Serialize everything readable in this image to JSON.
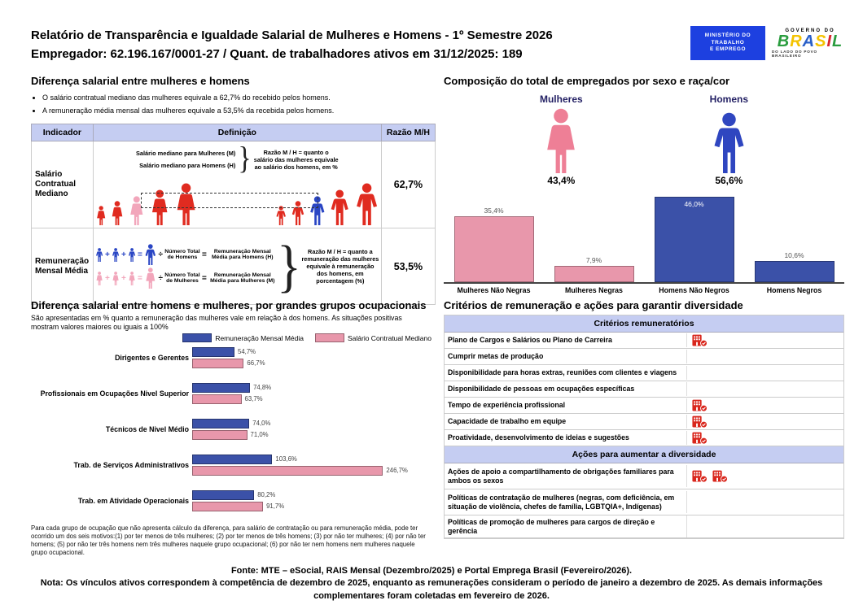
{
  "header": {
    "title": "Relatório de Transparência e Igualdade Salarial de Mulheres e Homens - 1º Semestre 2026",
    "subtitle": "Empregador: 62.196.167/0001-27 / Quant. de trabalhadores ativos em 31/12/2025: 189",
    "logos": {
      "ministry_lines": [
        "MINISTÉRIO DO",
        "TRABALHO",
        "E EMPREGO"
      ],
      "gov_top": "GOVERNO DO",
      "gov_name": "BRASIL",
      "gov_letter_colors": [
        "#2a9d3f",
        "#f4c300",
        "#2a60c8",
        "#f4c300",
        "#d7262c",
        "#2a9d3f"
      ],
      "gov_tagline": "DO LADO DO POVO BRASILEIRO"
    }
  },
  "salary_gap": {
    "title": "Diferença salarial entre mulheres e homens",
    "bullets": [
      "O salário contratual mediano das mulheres equivale a 62,7% do recebido pelos homens.",
      "A remuneração média mensal das mulheres equivale a 53,5% da recebida pelos homens."
    ],
    "table_headers": [
      "Indicador",
      "Definição",
      "Razão M/H"
    ],
    "row1": {
      "indicator": "Salário Contratual Mediano",
      "def_line1": "Salário mediano para Mulheres (M)",
      "def_line2": "Salário mediano para Homens (H)",
      "note": "Razão M / H = quanto o salário das mulheres equivale ao salário dos homens, em %",
      "ratio": "62,7%",
      "women_colors": [
        "red",
        "red",
        "pink",
        "red",
        "red"
      ],
      "men_colors": [
        "red",
        "red",
        "blue",
        "red",
        "red"
      ]
    },
    "row2": {
      "indicator": "Remuneração Mensal Média",
      "men_divisor": "Número Total de Homens",
      "men_result": "Remuneração Mensal Média para Homens (H)",
      "women_divisor": "Número Total de Mulheres",
      "women_result": "Remuneração Mensal Média para Mulheres (M)",
      "note": "Razão M / H = quanto a remuneração das mulheres equivale à remuneração dos homens, em porcentagem (%)",
      "ratio": "53,5%"
    }
  },
  "composition": {
    "title": "Composição do total de empregados por sexo e raça/cor",
    "women_label": "Mulheres",
    "women_pct": "43,4%",
    "men_label": "Homens",
    "men_pct": "56,6%"
  },
  "occupational": {
    "title": "Diferença salarial entre homens e mulheres, por grandes grupos ocupacionais",
    "subtitle": "São apresentadas em % quanto a remuneração das mulheres vale em relação à dos homens. As situações positivas mostram valores maiores ou iguais a 100%",
    "footnote": "Para cada grupo de ocupação que não apresenta cálculo da diferença, para salário de contratação ou para remuneração média, pode ter ocorrido um dos seis motivos:(1) por ter menos de três mulheres; (2) por ter menos de três homens; (3) por não ter mulheres; (4) por não ter homens; (5) por não ter três homens nem três mulheres naquele grupo ocupacional; (6) por não ter nem homens nem mulheres naquele grupo ocupacional."
  },
  "criteria": {
    "title": "Critérios de remuneração e ações para garantir diversidade",
    "section1": "Critérios remuneratórios",
    "rows1": [
      {
        "label": "Plano de Cargos e Salários ou Plano de Carreira",
        "checks": 1
      },
      {
        "label": "Cumprir metas de produção",
        "checks": 0
      },
      {
        "label": "Disponibilidade para horas extras, reuniões com clientes e viagens",
        "checks": 0
      },
      {
        "label": "Disponibilidade de pessoas em ocupações específicas",
        "checks": 0
      },
      {
        "label": "Tempo de experiência profissional",
        "checks": 1
      },
      {
        "label": "Capacidade de trabalho em equipe",
        "checks": 1
      },
      {
        "label": "Proatividade, desenvolvimento de ideias e sugestões",
        "checks": 1
      }
    ],
    "section2": "Ações para aumentar a diversidade",
    "rows2": [
      {
        "label": "Ações de apoio a compartilhamento de obrigações familiares para ambos os sexos",
        "checks": 2
      },
      {
        "label": "Políticas de contratação de mulheres (negras, com deficiência, em situação de violência, chefes de família, LGBTQIA+, Indígenas)",
        "checks": 0
      },
      {
        "label": "Políticas de promoção de mulheres para cargos de direção e gerência",
        "checks": 0
      }
    ]
  },
  "footer": {
    "source": "Fonte: MTE – eSocial, RAIS Mensal (Dezembro/2025) e Portal Emprega Brasil (Fevereiro/2026).",
    "note": "Nota: Os vínculos ativos correspondem à competência de dezembro de 2025, enquanto as remunerações consideram o período de janeiro a dezembro de 2025. As demais informações complementares foram coletadas em fevereiro de 2026."
  },
  "colors": {
    "header_fill": "#c5cdf2",
    "bar_blue": "#3b51a8",
    "bar_pink": "#e897ab",
    "icon_red": "#e02b20",
    "icon_pink": "#f2a6bb",
    "icon_blue": "#2a46c4",
    "fig_pink": "#ee7f96",
    "fig_blue": "#2f46c0",
    "label_navy": "#221f63",
    "check_red": "#d9261c"
  },
  "chart_data": [
    {
      "type": "bar",
      "title": "Composição do total de empregados por sexo e raça/cor",
      "categories": [
        "Mulheres Não Negras",
        "Mulheres Negras",
        "Homens Não Negros",
        "Homens Negros"
      ],
      "values": [
        35.4,
        7.9,
        46.0,
        10.6
      ],
      "labels": [
        "35,4%",
        "7,9%",
        "46,0%",
        "10,6%"
      ],
      "bar_colors": [
        "#e897ab",
        "#e897ab",
        "#3b51a8",
        "#3b51a8"
      ],
      "label_inside": [
        false,
        false,
        true,
        false
      ],
      "summary": {
        "Mulheres": "43,4%",
        "Homens": "56,6%"
      },
      "ylim": [
        0,
        50
      ],
      "grid": false
    },
    {
      "type": "bar",
      "orientation": "horizontal",
      "title": "Diferença salarial entre homens e mulheres, por grandes grupos ocupacionais",
      "categories": [
        "Dirigentes e Gerentes",
        "Profissionais em Ocupações Nivel Superior",
        "Técnicos de Nivel Médio",
        "Trab. de Serviços Administrativos",
        "Trab. em Atividade Operacionais"
      ],
      "series": [
        {
          "name": "Remuneração Mensal Média",
          "color": "#3b51a8",
          "values": [
            54.7,
            74.8,
            74.0,
            103.6,
            80.2
          ],
          "labels": [
            "54,7%",
            "74,8%",
            "74,0%",
            "103,6%",
            "80,2%"
          ]
        },
        {
          "name": "Salário Contratual Mediano",
          "color": "#e897ab",
          "values": [
            66.7,
            63.7,
            71.0,
            246.7,
            91.7
          ],
          "labels": [
            "66,7%",
            "63,7%",
            "71,0%",
            "246,7%",
            "91,7%"
          ]
        }
      ],
      "xlim": [
        0,
        260
      ],
      "legend_position": "top-right",
      "grid": false
    }
  ]
}
